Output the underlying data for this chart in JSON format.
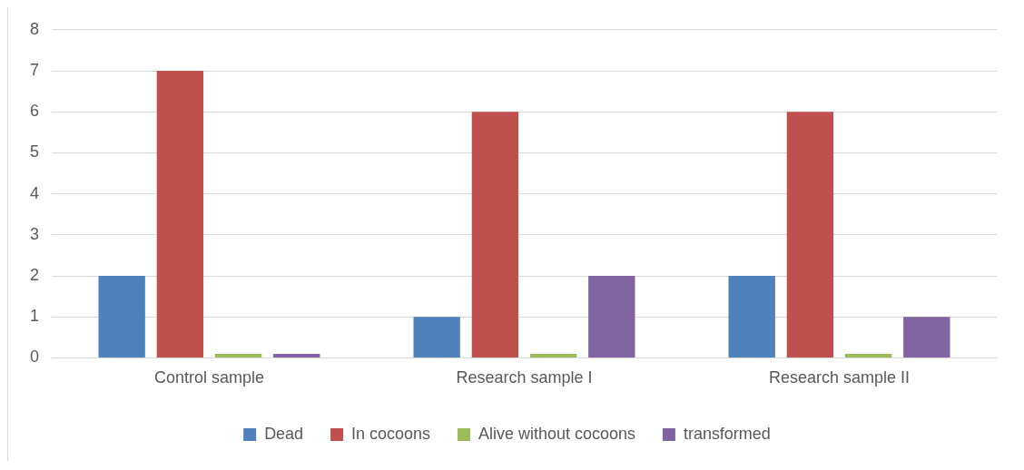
{
  "chart_data": {
    "type": "bar",
    "categories": [
      "Control sample",
      "Research sample I",
      "Research sample II"
    ],
    "series": [
      {
        "name": "Dead",
        "color": "#4f81bd",
        "values": [
          2,
          1,
          2
        ]
      },
      {
        "name": "In cocoons",
        "color": "#c0504d",
        "values": [
          7,
          6,
          6
        ]
      },
      {
        "name": "Alive without cocoons",
        "color": "#9bbb59",
        "values": [
          0.1,
          0.1,
          0.1
        ]
      },
      {
        "name": "transformed",
        "color": "#8064a2",
        "values": [
          0.1,
          2,
          1
        ]
      }
    ],
    "ylim": [
      0,
      8
    ],
    "yticks": [
      0,
      1,
      2,
      3,
      4,
      5,
      6,
      7,
      8
    ],
    "grid": "y",
    "legend": "bottom"
  }
}
